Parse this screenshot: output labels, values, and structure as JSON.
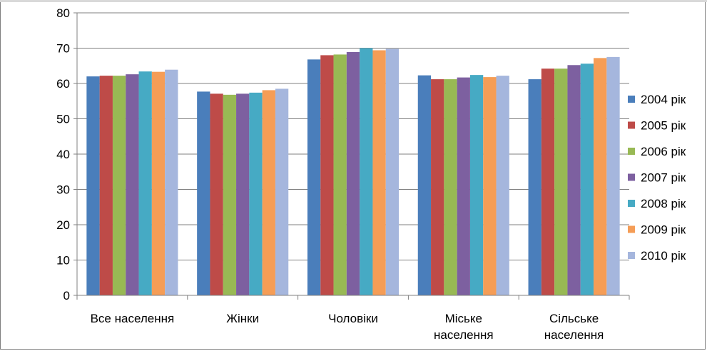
{
  "chart_data": {
    "type": "bar",
    "categories": [
      [
        "Все населення"
      ],
      [
        "Жінки"
      ],
      [
        "Чоловіки"
      ],
      [
        "Міське",
        "населення"
      ],
      [
        "Сільське",
        "населення"
      ]
    ],
    "series": [
      {
        "name": "2004 рік",
        "color": "#4a7ebb",
        "values": [
          62.0,
          57.7,
          66.8,
          62.3,
          61.2
        ]
      },
      {
        "name": "2005 рік",
        "color": "#be4b48",
        "values": [
          62.2,
          57.1,
          68.0,
          61.2,
          64.2
        ]
      },
      {
        "name": "2006 рік",
        "color": "#98b954",
        "values": [
          62.2,
          56.8,
          68.2,
          61.2,
          64.2
        ]
      },
      {
        "name": "2007 рік",
        "color": "#7d60a0",
        "values": [
          62.6,
          57.1,
          68.9,
          61.7,
          65.2
        ]
      },
      {
        "name": "2008 рік",
        "color": "#46aac4",
        "values": [
          63.4,
          57.4,
          70.0,
          62.4,
          65.6
        ]
      },
      {
        "name": "2009 рік",
        "color": "#f59d56",
        "values": [
          63.3,
          58.1,
          69.4,
          61.8,
          67.2
        ]
      },
      {
        "name": "2010 рік",
        "color": "#a5b6dd",
        "values": [
          63.9,
          58.5,
          69.8,
          62.2,
          67.5
        ]
      }
    ],
    "ylim": [
      0,
      80
    ],
    "yticks": [
      0,
      10,
      20,
      30,
      40,
      50,
      60,
      70,
      80
    ],
    "grid": true,
    "legend_position": "right"
  }
}
